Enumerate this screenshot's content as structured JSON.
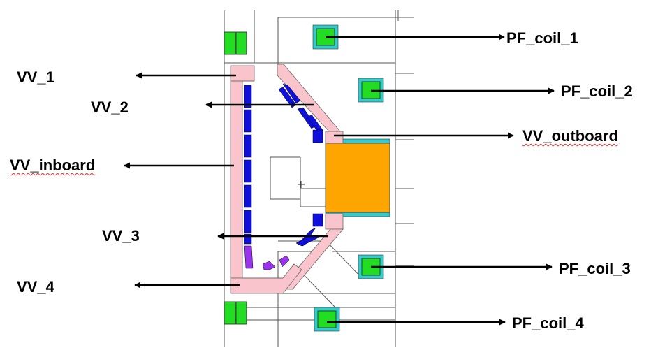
{
  "labels": {
    "vv_1": "VV_1",
    "vv_2": "VV_2",
    "vv_inboard": "VV_inboard",
    "vv_3": "VV_3",
    "vv_4": "VV_4",
    "pf_coil_1": "PF_coil_1",
    "pf_coil_2": "PF_coil_2",
    "vv_outboard": "VV_outboard",
    "pf_coil_3": "PF_coil_3",
    "pf_coil_4": "PF_coil_4"
  },
  "colors": {
    "vacuum_vessel": "#f9c4cc",
    "coil_fill": "#22dd22",
    "coil_casing": "#33cccc",
    "tile": "#1010dd",
    "divertor": "#9933ee",
    "blanket": "#ffa500",
    "blanket_edge": "#33cccc",
    "outline": "#555555",
    "arrow": "#000000"
  }
}
